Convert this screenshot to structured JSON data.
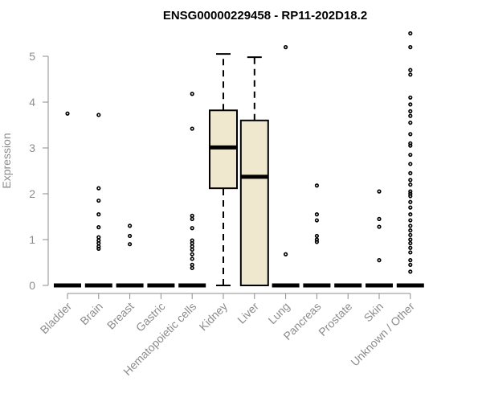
{
  "chart_data": {
    "type": "boxplot",
    "title": "ENSG00000229458 - RP11-202D18.2",
    "ylabel": "Expression",
    "xlabel": "",
    "ylim": [
      0,
      5.5
    ],
    "yticks": [
      "0",
      "1",
      "2",
      "3",
      "4",
      "5"
    ],
    "categories": [
      "Bladder",
      "Brain",
      "Breast",
      "Gastric",
      "Hematopoietic cells",
      "Kidney",
      "Liver",
      "Lung",
      "Pancreas",
      "Prostate",
      "Skin",
      "Unknown / Other"
    ],
    "box_fill": "#efe8cf",
    "boxes": [
      {
        "category": "Bladder",
        "min": 0,
        "q1": 0,
        "median": 0,
        "q3": 0,
        "max": 0,
        "outliers": [
          3.75
        ]
      },
      {
        "category": "Brain",
        "min": 0,
        "q1": 0,
        "median": 0,
        "q3": 0,
        "max": 0,
        "outliers": [
          3.72,
          2.12,
          1.85,
          1.55,
          1.27,
          1.05,
          0.98,
          0.92,
          0.85,
          0.8
        ]
      },
      {
        "category": "Breast",
        "min": 0,
        "q1": 0,
        "median": 0,
        "q3": 0,
        "max": 0,
        "outliers": [
          1.3,
          1.08,
          0.9
        ]
      },
      {
        "category": "Gastric",
        "min": 0,
        "q1": 0,
        "median": 0,
        "q3": 0,
        "max": 0,
        "outliers": []
      },
      {
        "category": "Hematopoietic cells",
        "min": 0,
        "q1": 0,
        "median": 0,
        "q3": 0,
        "max": 0,
        "outliers": [
          4.18,
          3.42,
          1.52,
          1.45,
          1.25,
          0.98,
          0.92,
          0.85,
          0.78,
          0.68,
          0.58,
          0.45,
          0.38
        ]
      },
      {
        "category": "Kidney",
        "min": 0,
        "q1": 2.12,
        "median": 3.01,
        "q3": 3.82,
        "max": 5.05,
        "outliers": []
      },
      {
        "category": "Liver",
        "min": 0,
        "q1": 0,
        "median": 2.37,
        "q3": 3.6,
        "max": 4.98,
        "outliers": []
      },
      {
        "category": "Lung",
        "min": 0,
        "q1": 0,
        "median": 0,
        "q3": 0,
        "max": 0,
        "outliers": [
          5.2,
          0.68
        ]
      },
      {
        "category": "Pancreas",
        "min": 0,
        "q1": 0,
        "median": 0,
        "q3": 0,
        "max": 0,
        "outliers": [
          2.18,
          1.55,
          1.42,
          1.08,
          1.0,
          0.95
        ]
      },
      {
        "category": "Prostate",
        "min": 0,
        "q1": 0,
        "median": 0,
        "q3": 0,
        "max": 0,
        "outliers": []
      },
      {
        "category": "Skin",
        "min": 0,
        "q1": 0,
        "median": 0,
        "q3": 0,
        "max": 0,
        "outliers": [
          2.05,
          1.45,
          1.28,
          0.55
        ]
      },
      {
        "category": "Unknown / Other",
        "min": 0,
        "q1": 0,
        "median": 0,
        "q3": 0,
        "max": 0,
        "outliers": [
          5.5,
          5.2,
          4.7,
          4.6,
          4.1,
          3.95,
          3.8,
          3.7,
          3.55,
          3.3,
          3.1,
          3.05,
          2.85,
          2.65,
          2.45,
          2.3,
          2.2,
          2.05,
          2.0,
          1.95,
          1.82,
          1.7,
          1.55,
          1.42,
          1.3,
          1.2,
          1.1,
          1.0,
          0.92,
          0.82,
          0.72,
          0.55,
          0.45,
          0.3
        ]
      }
    ]
  }
}
